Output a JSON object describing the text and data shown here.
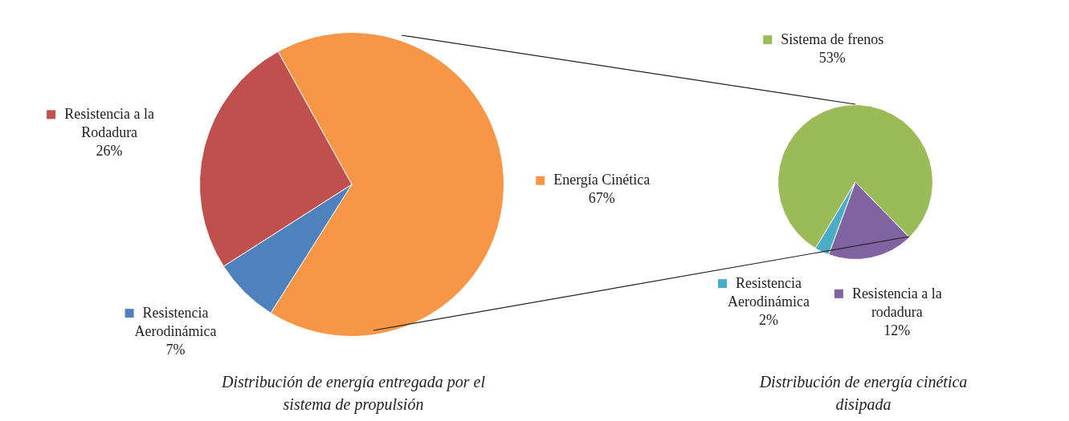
{
  "chart_data": [
    {
      "type": "pie",
      "title": "Distribución de energía entregada por el sistema de propulsión",
      "categories": [
        "Energía Cinética",
        "Resistencia Aerodinámica",
        "Resistencia a la Rodadura"
      ],
      "values": [
        67,
        7,
        26
      ],
      "colors": [
        "#f79646",
        "#4f81bd",
        "#c0504d"
      ],
      "value_labels": [
        "67%",
        "7%",
        "26%"
      ],
      "legend": "right"
    },
    {
      "type": "pie",
      "title": "Distribución de energía cinética disipada",
      "categories": [
        "Sistema de frenos",
        "Resistencia a la rodadura",
        "Resistencia Aerodinámica"
      ],
      "values": [
        53,
        12,
        2
      ],
      "colors": [
        "#9bbb59",
        "#8064a2",
        "#4bacc6"
      ],
      "value_labels": [
        "53%",
        "12%",
        "2%"
      ],
      "legend": "top left"
    }
  ]
}
